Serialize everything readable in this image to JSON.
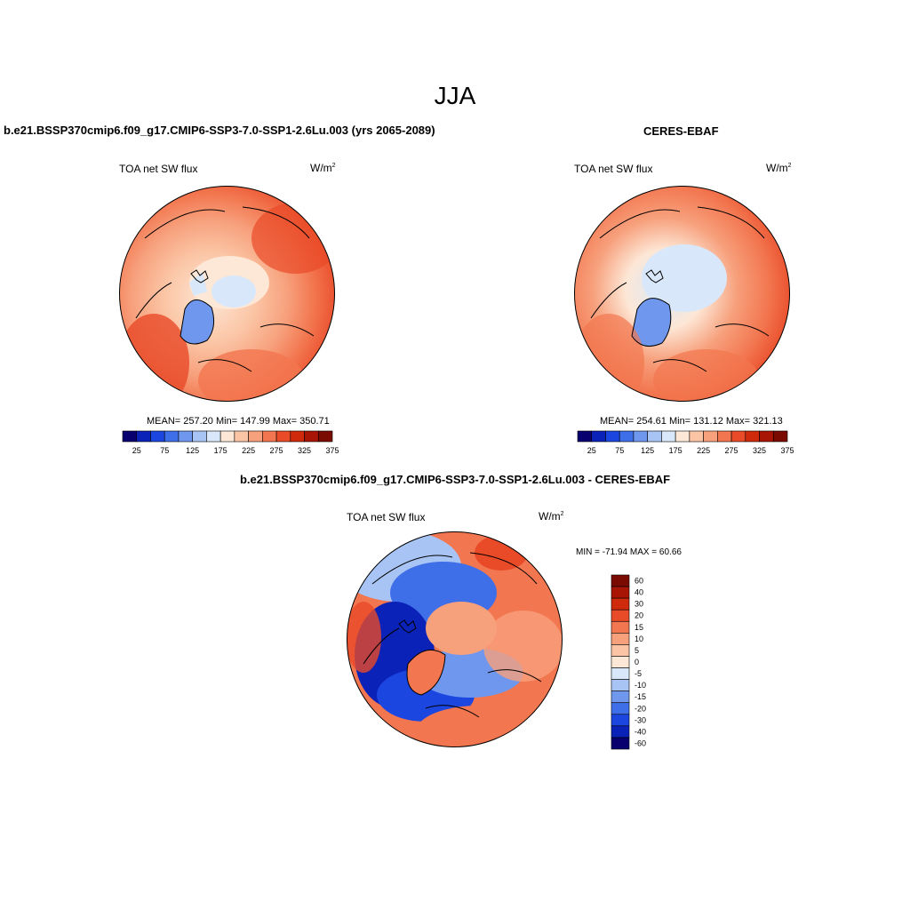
{
  "season": "JJA",
  "palette_abs": [
    "#08006e",
    "#0a22b8",
    "#1b46e0",
    "#3f6fe8",
    "#6f97ee",
    "#a8c4f4",
    "#d8e8fa",
    "#fde7d6",
    "#fbc5a5",
    "#f7a07c",
    "#f2764f",
    "#e94a28",
    "#cf2a0c",
    "#a81504",
    "#7a0b02"
  ],
  "palette_diff": [
    "#08006e",
    "#0a22b8",
    "#1b46e0",
    "#3f6fe8",
    "#6f97ee",
    "#a8c4f4",
    "#d8e8fa",
    "#fde7d6",
    "#fbc5a5",
    "#f7a07c",
    "#f2764f",
    "#e94a28",
    "#cf2a0c",
    "#a81504",
    "#7a0b02"
  ],
  "panels": {
    "model": {
      "title": "b.e21.BSSP370cmip6.f09_g17.CMIP6-SSP3-7.0-SSP1-2.6Lu.003 (yrs 2065-2089)",
      "variable": "TOA net SW flux",
      "units": "W/m",
      "units_exp": "2",
      "stats": "MEAN= 257.20  Min= 147.99  Max= 350.71",
      "colorbar_ticks": [
        "25",
        "75",
        "125",
        "175",
        "225",
        "275",
        "325",
        "375"
      ]
    },
    "obs": {
      "title": "CERES-EBAF",
      "variable": "TOA net SW flux",
      "units": "W/m",
      "units_exp": "2",
      "stats": "MEAN= 254.61  Min= 131.12  Max= 321.13",
      "colorbar_ticks": [
        "25",
        "75",
        "125",
        "175",
        "225",
        "275",
        "325",
        "375"
      ]
    },
    "diff": {
      "title": "b.e21.BSSP370cmip6.f09_g17.CMIP6-SSP3-7.0-SSP1-2.6Lu.003 - CERES-EBAF",
      "variable": "TOA net SW flux",
      "units": "W/m",
      "units_exp": "2",
      "stats": "MIN = -71.94 MAX =  60.66",
      "colorbar_labels": [
        "60",
        "40",
        "30",
        "20",
        "15",
        "10",
        "5",
        "0",
        "-5",
        "-10",
        "-15",
        "-20",
        "-30",
        "-40",
        "-60"
      ]
    }
  }
}
